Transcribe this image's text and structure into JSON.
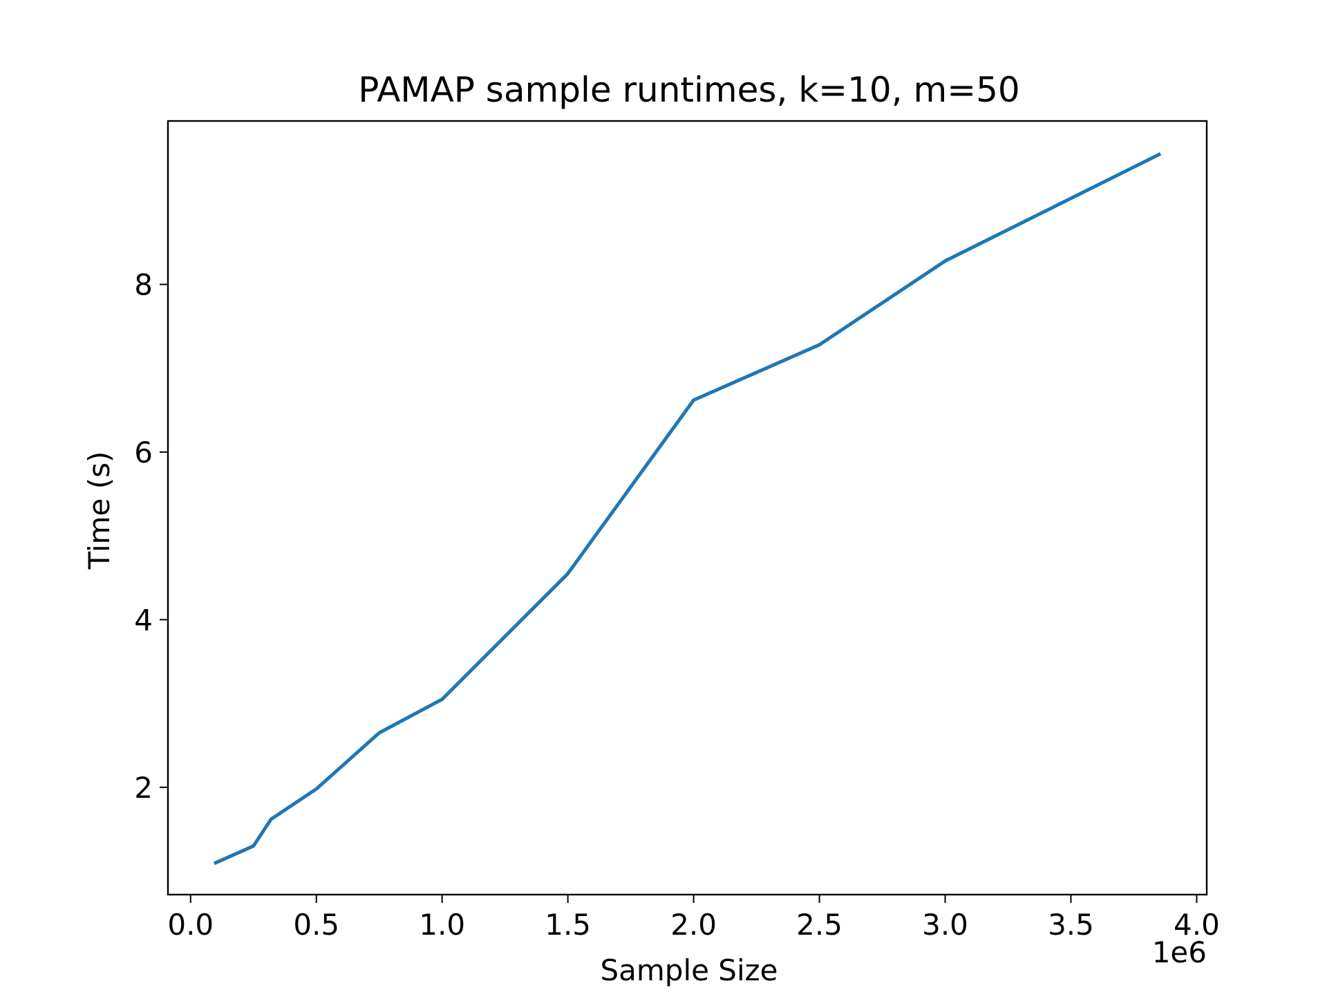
{
  "chart_data": {
    "type": "line",
    "title": "PAMAP sample runtimes, k=10, m=50",
    "xlabel": "Sample Size",
    "ylabel": "Time (s)",
    "x_offset_label": "1e6",
    "xlim": [
      -0.09,
      4.04
    ],
    "ylim": [
      0.72,
      9.95
    ],
    "x_ticks": [
      0.0,
      0.5,
      1.0,
      1.5,
      2.0,
      2.5,
      3.0,
      3.5,
      4.0
    ],
    "x_tick_labels": [
      "0.0",
      "0.5",
      "1.0",
      "1.5",
      "2.0",
      "2.5",
      "3.0",
      "3.5",
      "4.0"
    ],
    "y_ticks": [
      2,
      4,
      6,
      8
    ],
    "y_tick_labels": [
      "2",
      "4",
      "6",
      "8"
    ],
    "grid": false,
    "series": [
      {
        "color": "#1f77b4",
        "x": [
          0.1,
          0.25,
          0.32,
          0.5,
          0.75,
          1.0,
          1.5,
          2.0,
          2.5,
          3.0,
          3.85
        ],
        "y": [
          1.1,
          1.3,
          1.62,
          1.98,
          2.65,
          3.05,
          4.55,
          6.62,
          7.28,
          8.28,
          9.55
        ]
      }
    ]
  }
}
